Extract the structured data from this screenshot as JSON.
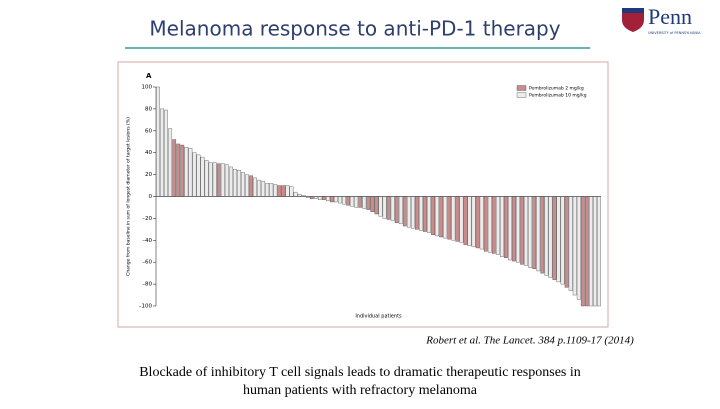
{
  "slide": {
    "title": "Melanoma response to anti-PD-1 therapy",
    "logo": {
      "name": "Penn",
      "subtitle": "UNIVERSITY of PENNSYLVANIA"
    },
    "citation": "Robert et al. The Lancet. 384 p.1109-17 (2014)",
    "caption": [
      "Blockade of inhibitory T cell signals leads to dramatic therapeutic responses in",
      "human patients with refractory melanoma"
    ]
  },
  "chart_data": {
    "type": "bar",
    "panel_label": "A",
    "y_label": "Change from baseline in sum of longest diameter of target lesions (%)",
    "x_label": "Individual patients",
    "ylim": [
      -100,
      100
    ],
    "yticks": [
      {
        "value": -100,
        "label": "–100"
      },
      {
        "value": -80,
        "label": "–80"
      },
      {
        "value": -60,
        "label": "–60"
      },
      {
        "value": -40,
        "label": "–40"
      },
      {
        "value": -20,
        "label": "–20"
      },
      0,
      20,
      40,
      60,
      80,
      100
    ],
    "legend": "upper right",
    "series": [
      {
        "name": "Pembrolizumab 2 mg/kg",
        "color": "#c98b8b",
        "values": [
          null,
          null,
          null,
          null,
          52,
          48,
          47,
          null,
          null,
          null,
          null,
          null,
          null,
          null,
          null,
          30,
          null,
          null,
          null,
          null,
          null,
          null,
          null,
          19,
          null,
          null,
          null,
          null,
          null,
          null,
          10,
          10,
          null,
          null,
          null,
          null,
          null,
          null,
          -2,
          null,
          null,
          -3,
          null,
          -5,
          null,
          null,
          null,
          -8,
          null,
          null,
          -10,
          null,
          -12,
          -14,
          -16,
          null,
          null,
          -21,
          null,
          -24,
          null,
          -27,
          null,
          null,
          -30,
          null,
          -32,
          null,
          -35,
          null,
          -37,
          null,
          -39,
          null,
          -41,
          null,
          -44,
          null,
          null,
          -47,
          null,
          -50,
          null,
          -52,
          null,
          null,
          -56,
          null,
          -59,
          null,
          -62,
          null,
          null,
          -66,
          null,
          -70,
          null,
          null,
          -76,
          null,
          null,
          -83,
          null,
          null,
          null,
          -100,
          -100,
          null,
          null,
          null
        ]
      },
      {
        "name": "Pembrolizumab 10 mg/kg",
        "color": "#ececec",
        "values": [
          100,
          80,
          79,
          62,
          null,
          null,
          null,
          45,
          44,
          40,
          38,
          36,
          33,
          31,
          31,
          null,
          30,
          29,
          27,
          25,
          24,
          22,
          20,
          null,
          17,
          15,
          14,
          12,
          12,
          11,
          null,
          null,
          10,
          9,
          4,
          2,
          1,
          -1,
          null,
          -2,
          -3,
          null,
          -4,
          null,
          -5,
          -6,
          -7,
          null,
          -9,
          -10,
          null,
          -11,
          null,
          null,
          null,
          -18,
          -20,
          null,
          -22,
          null,
          -25,
          null,
          -28,
          -29,
          null,
          -31,
          null,
          -33,
          null,
          -36,
          null,
          -38,
          null,
          -40,
          null,
          -42,
          null,
          -45,
          -46,
          null,
          -48,
          null,
          -51,
          null,
          -53,
          -55,
          null,
          -58,
          null,
          -60,
          null,
          -63,
          -65,
          null,
          -68,
          null,
          -72,
          -74,
          null,
          -78,
          -80,
          null,
          -86,
          -90,
          -94,
          null,
          null,
          -100,
          -100,
          -100
        ]
      }
    ]
  }
}
